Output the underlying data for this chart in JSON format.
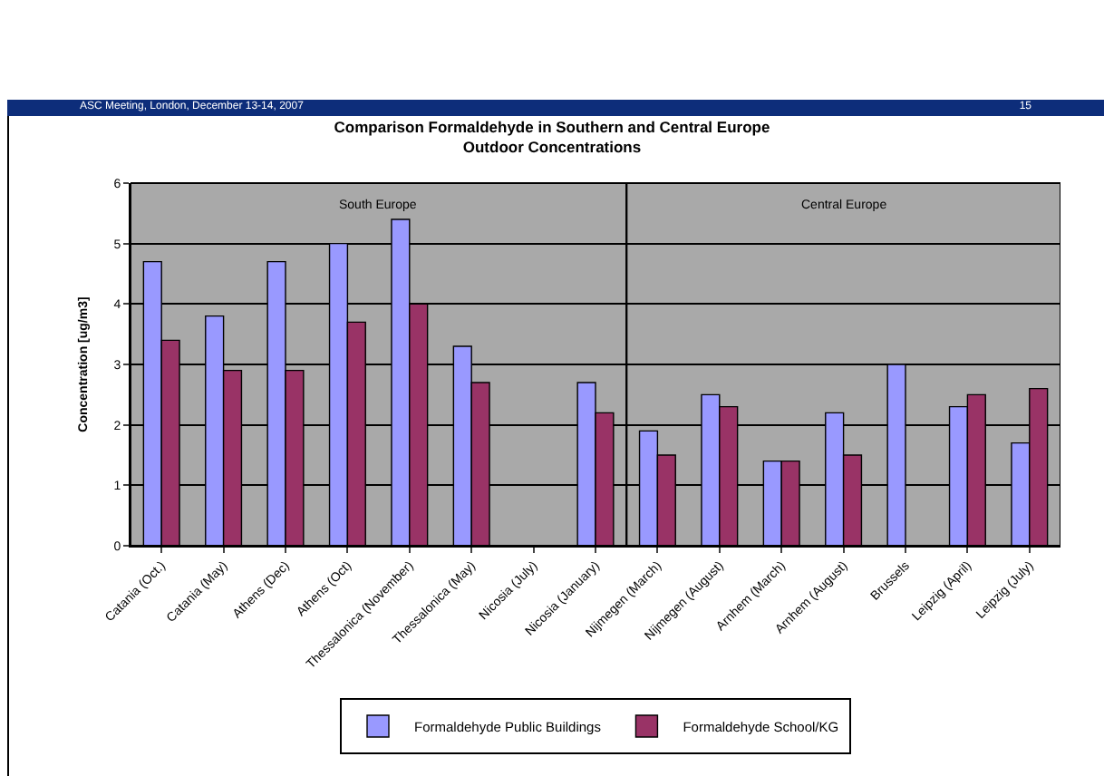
{
  "chart_data": {
    "type": "bar",
    "title": "Comparison Formaldehyde in Southern and Central Europe",
    "subtitle": "Outdoor Concentrations",
    "ylabel": "Concentration [ug/m3]",
    "annotations": [
      "ASC Meeting, London, December 13-14,  2007",
      "15"
    ],
    "categories": [
      "Catania (Oct.)",
      "Catania (May)",
      "Athens (Dec)",
      "Athens (Oct)",
      "Thessalonica (November)",
      "Thessalonica (May)",
      "Nicosia (July)",
      "Nicosia (January)",
      "Nijmegen (March)",
      "Nijmegen (August)",
      "Arnhem (March)",
      "Arnhem (August)",
      "Brussels",
      "Leipzig (April)",
      "Leipzig (July)"
    ],
    "series": [
      {
        "name": "Formaldehyde Public Buildings",
        "color": "#9999ff",
        "values": [
          4.7,
          3.8,
          4.7,
          5.0,
          5.4,
          3.3,
          null,
          2.7,
          1.9,
          2.5,
          1.4,
          2.2,
          3.0,
          2.3,
          1.7
        ]
      },
      {
        "name": "Formaldehyde School/KG",
        "color": "#993366",
        "values": [
          3.4,
          2.9,
          2.9,
          3.7,
          4.0,
          2.7,
          null,
          2.2,
          1.5,
          2.3,
          1.4,
          1.5,
          null,
          2.5,
          2.6
        ]
      }
    ],
    "bands": [
      {
        "axis": "x",
        "from": "Catania (Oct.)",
        "to": "Nicosia (January)",
        "label": "South Europe",
        "color": "#a9a9a9"
      },
      {
        "axis": "x",
        "from": "Nijmegen (March)",
        "to": "Leipzig (July)",
        "label": "Central Europe",
        "color": "#a9a9a9"
      }
    ],
    "ylim": [
      0,
      6
    ],
    "yticks": [
      0,
      1,
      2,
      3,
      4,
      5,
      6
    ],
    "grid": "y",
    "legend": "bottom"
  }
}
